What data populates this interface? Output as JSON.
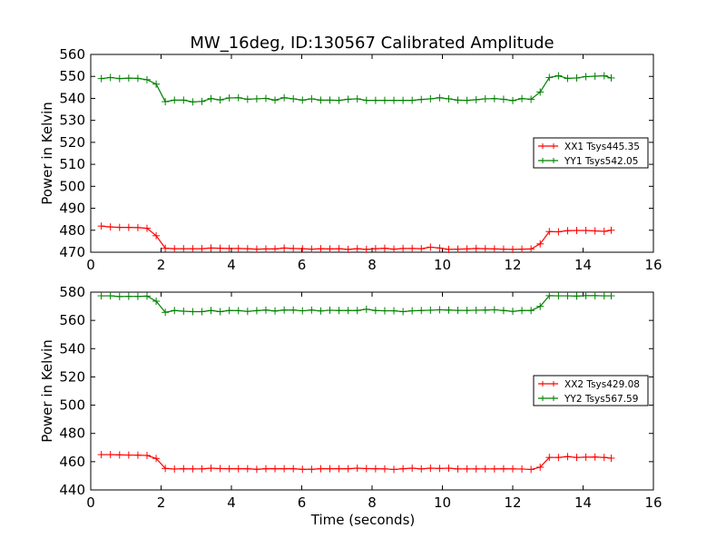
{
  "title": "MW_16deg, ID:130567 Calibrated Amplitude",
  "colors": {
    "red": "#ff0000",
    "green": "#008000"
  },
  "chart_data": [
    {
      "type": "line",
      "ylabel": "Power in Kelvin",
      "xlabel": "",
      "xlim": [
        0,
        16
      ],
      "ylim": [
        470,
        560
      ],
      "xticks": [
        0,
        2,
        4,
        6,
        8,
        10,
        12,
        14,
        16
      ],
      "yticks": [
        470,
        480,
        490,
        500,
        510,
        520,
        530,
        540,
        550,
        560
      ],
      "legend_position": "center-right",
      "x": [
        0.3,
        0.56,
        0.82,
        1.08,
        1.34,
        1.6,
        1.86,
        2.12,
        2.38,
        2.64,
        2.9,
        3.16,
        3.42,
        3.68,
        3.94,
        4.2,
        4.46,
        4.72,
        4.98,
        5.24,
        5.5,
        5.76,
        6.02,
        6.28,
        6.54,
        6.8,
        7.06,
        7.32,
        7.58,
        7.84,
        8.1,
        8.36,
        8.62,
        8.88,
        9.14,
        9.4,
        9.66,
        9.92,
        10.18,
        10.44,
        10.7,
        10.96,
        11.22,
        11.48,
        11.74,
        12.0,
        12.26,
        12.52,
        12.78,
        13.04,
        13.3,
        13.56,
        13.82,
        14.08,
        14.34,
        14.6,
        14.8
      ],
      "series": [
        {
          "name": "XX1 Tsys445.35",
          "color": "#ff0000",
          "values": [
            481.9,
            481.5,
            481.3,
            481.3,
            481.2,
            480.9,
            477.5,
            471.8,
            471.6,
            471.6,
            471.6,
            471.6,
            471.9,
            471.8,
            471.7,
            471.7,
            471.6,
            471.4,
            471.5,
            471.5,
            471.9,
            471.7,
            471.6,
            471.4,
            471.6,
            471.5,
            471.6,
            471.3,
            471.6,
            471.3,
            471.6,
            471.8,
            471.4,
            471.7,
            471.7,
            471.6,
            472.3,
            471.9,
            471.3,
            471.4,
            471.5,
            471.7,
            471.6,
            471.5,
            471.4,
            471.3,
            471.4,
            471.5,
            473.8,
            479.4,
            479.3,
            479.8,
            479.9,
            479.9,
            479.7,
            479.5,
            480.0
          ]
        },
        {
          "name": "YY1 Tsys542.05",
          "color": "#008000",
          "values": [
            549.0,
            549.5,
            549.0,
            549.2,
            549.1,
            548.5,
            546.5,
            538.5,
            539.2,
            539.2,
            538.4,
            538.6,
            539.9,
            539.3,
            540.2,
            540.3,
            539.6,
            539.8,
            540.0,
            539.2,
            540.3,
            539.8,
            539.2,
            539.8,
            539.2,
            539.2,
            539.1,
            539.6,
            539.8,
            539.1,
            539.1,
            539.1,
            539.1,
            539.1,
            539.1,
            539.5,
            539.8,
            540.3,
            539.8,
            539.2,
            539.1,
            539.4,
            539.8,
            539.9,
            539.6,
            539.0,
            539.9,
            539.6,
            542.9,
            549.5,
            550.3,
            549.1,
            549.3,
            549.9,
            550.1,
            550.3,
            549.3
          ]
        }
      ]
    },
    {
      "type": "line",
      "ylabel": "Power in Kelvin",
      "xlabel": "Time (seconds)",
      "xlim": [
        0,
        16
      ],
      "ylim": [
        440,
        580
      ],
      "xticks": [
        0,
        2,
        4,
        6,
        8,
        10,
        12,
        14,
        16
      ],
      "yticks": [
        440,
        460,
        480,
        500,
        520,
        540,
        560,
        580
      ],
      "legend_position": "center-right",
      "x": [
        0.3,
        0.56,
        0.82,
        1.08,
        1.34,
        1.6,
        1.86,
        2.12,
        2.38,
        2.64,
        2.9,
        3.16,
        3.42,
        3.68,
        3.94,
        4.2,
        4.46,
        4.72,
        4.98,
        5.24,
        5.5,
        5.76,
        6.02,
        6.28,
        6.54,
        6.8,
        7.06,
        7.32,
        7.58,
        7.84,
        8.1,
        8.36,
        8.62,
        8.88,
        9.14,
        9.4,
        9.66,
        9.92,
        10.18,
        10.44,
        10.7,
        10.96,
        11.22,
        11.48,
        11.74,
        12.0,
        12.26,
        12.52,
        12.78,
        13.04,
        13.3,
        13.56,
        13.82,
        14.08,
        14.34,
        14.6,
        14.8
      ],
      "series": [
        {
          "name": "XX2 Tsys429.08",
          "color": "#ff0000",
          "values": [
            465.0,
            465.0,
            464.8,
            464.7,
            464.6,
            464.4,
            462.3,
            455.2,
            454.8,
            455.0,
            454.9,
            454.9,
            455.4,
            455.1,
            455.0,
            455.0,
            455.0,
            454.6,
            455.0,
            455.0,
            455.0,
            455.0,
            454.6,
            454.6,
            455.0,
            455.0,
            455.0,
            455.0,
            455.4,
            455.1,
            455.0,
            454.9,
            454.5,
            455.0,
            455.4,
            454.9,
            455.4,
            455.2,
            455.4,
            454.9,
            454.9,
            454.9,
            454.9,
            454.9,
            455.0,
            454.9,
            454.8,
            454.5,
            456.1,
            463.0,
            463.0,
            463.6,
            463.0,
            463.2,
            463.3,
            463.0,
            462.5
          ]
        },
        {
          "name": "YY2 Tsys567.59",
          "color": "#008000",
          "values": [
            577.4,
            577.4,
            576.9,
            577.0,
            577.0,
            577.2,
            573.6,
            565.7,
            567.0,
            566.5,
            566.2,
            566.2,
            567.0,
            566.2,
            567.0,
            566.9,
            566.4,
            566.9,
            567.3,
            566.7,
            567.3,
            567.3,
            566.8,
            567.3,
            566.7,
            567.2,
            567.0,
            567.0,
            567.0,
            567.9,
            567.0,
            566.8,
            566.8,
            566.2,
            566.8,
            567.0,
            567.2,
            567.5,
            567.3,
            567.1,
            567.1,
            567.2,
            567.3,
            567.5,
            567.0,
            566.4,
            567.0,
            567.0,
            569.9,
            577.5,
            577.4,
            577.4,
            577.2,
            577.5,
            577.5,
            577.4,
            577.4
          ]
        }
      ]
    }
  ]
}
